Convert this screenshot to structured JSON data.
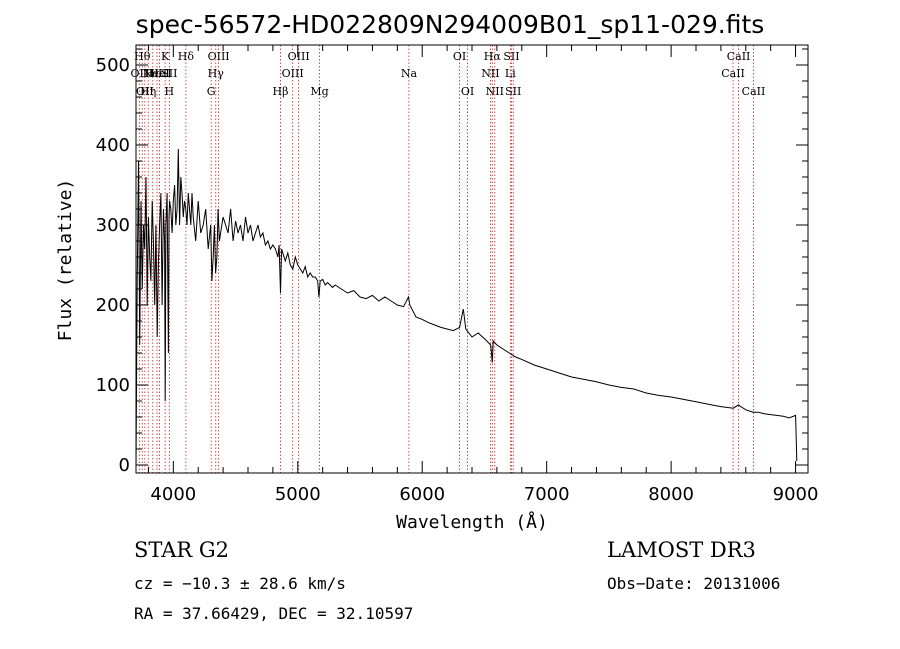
{
  "chart_data": {
    "type": "line",
    "title": "spec-56572-HD022809N294009B01_sp11-029.fits",
    "xlabel": "Wavelength (Å)",
    "ylabel": "Flux (relative)",
    "xlim": [
      3700,
      9100
    ],
    "ylim": [
      -10,
      525
    ],
    "x_ticks": [
      4000,
      5000,
      6000,
      7000,
      8000,
      9000
    ],
    "y_ticks": [
      0,
      100,
      200,
      300,
      400,
      500
    ],
    "series": [
      {
        "name": "spectrum",
        "x": [
          3700,
          3710,
          3720,
          3730,
          3740,
          3750,
          3760,
          3770,
          3780,
          3790,
          3800,
          3810,
          3820,
          3830,
          3840,
          3850,
          3860,
          3870,
          3880,
          3890,
          3900,
          3910,
          3920,
          3930,
          3935,
          3940,
          3950,
          3960,
          3965,
          3970,
          3980,
          3990,
          4000,
          4010,
          4020,
          4030,
          4040,
          4050,
          4060,
          4070,
          4080,
          4090,
          4100,
          4110,
          4120,
          4130,
          4140,
          4150,
          4160,
          4180,
          4200,
          4220,
          4240,
          4260,
          4280,
          4300,
          4310,
          4320,
          4330,
          4340,
          4350,
          4360,
          4370,
          4380,
          4400,
          4420,
          4440,
          4460,
          4480,
          4500,
          4520,
          4540,
          4560,
          4580,
          4600,
          4620,
          4640,
          4660,
          4680,
          4700,
          4720,
          4740,
          4760,
          4780,
          4800,
          4820,
          4840,
          4850,
          4861,
          4870,
          4880,
          4900,
          4920,
          4940,
          4960,
          4980,
          5000,
          5020,
          5040,
          5060,
          5080,
          5100,
          5120,
          5140,
          5160,
          5170,
          5180,
          5200,
          5220,
          5240,
          5260,
          5280,
          5300,
          5350,
          5400,
          5450,
          5500,
          5550,
          5600,
          5650,
          5700,
          5750,
          5800,
          5850,
          5890,
          5900,
          5950,
          6000,
          6050,
          6100,
          6150,
          6200,
          6250,
          6300,
          6330,
          6350,
          6400,
          6450,
          6500,
          6550,
          6563,
          6570,
          6600,
          6650,
          6700,
          6750,
          6800,
          6900,
          7000,
          7100,
          7200,
          7300,
          7400,
          7500,
          7600,
          7700,
          7800,
          7900,
          8000,
          8100,
          8200,
          8300,
          8400,
          8500,
          8540,
          8600,
          8660,
          8700,
          8750,
          8800,
          8850,
          8900,
          8950,
          9000,
          9010
        ],
        "y": [
          -5,
          230,
          380,
          150,
          330,
          220,
          300,
          270,
          360,
          200,
          310,
          260,
          230,
          330,
          280,
          200,
          300,
          160,
          250,
          300,
          340,
          200,
          320,
          280,
          80,
          300,
          340,
          140,
          310,
          330,
          320,
          290,
          330,
          350,
          300,
          320,
          395,
          300,
          360,
          340,
          310,
          330,
          320,
          300,
          340,
          320,
          300,
          340,
          310,
          280,
          330,
          290,
          300,
          320,
          270,
          300,
          230,
          260,
          300,
          240,
          260,
          320,
          280,
          290,
          310,
          300,
          290,
          320,
          280,
          305,
          290,
          300,
          280,
          310,
          290,
          300,
          280,
          290,
          300,
          285,
          290,
          275,
          280,
          270,
          275,
          270,
          260,
          275,
          215,
          270,
          265,
          255,
          265,
          250,
          245,
          260,
          250,
          245,
          240,
          248,
          235,
          240,
          235,
          235,
          230,
          210,
          230,
          232,
          225,
          228,
          225,
          222,
          225,
          220,
          215,
          218,
          210,
          208,
          212,
          205,
          210,
          205,
          200,
          198,
          210,
          200,
          185,
          182,
          178,
          175,
          172,
          170,
          168,
          172,
          195,
          170,
          160,
          165,
          158,
          150,
          128,
          155,
          150,
          145,
          140,
          135,
          132,
          125,
          120,
          115,
          110,
          107,
          104,
          100,
          97,
          95,
          90,
          87,
          85,
          82,
          79,
          76,
          73,
          71,
          75,
          69,
          66,
          66,
          64,
          63,
          62,
          61,
          59,
          62,
          5
        ]
      }
    ],
    "line_markers": [
      {
        "x": 3727,
        "labels": [
          "OII"
        ],
        "row": [
          2
        ]
      },
      {
        "x": 3750,
        "labels": [
          "Hθ"
        ],
        "row": [
          1
        ]
      },
      {
        "x": 3771,
        "labels": [
          "OII"
        ],
        "row": [
          3
        ]
      },
      {
        "x": 3798,
        "labels": [
          "Hη"
        ],
        "row": [
          3
        ]
      },
      {
        "x": 3835,
        "labels": [
          "Hε"
        ],
        "row": [
          2
        ]
      },
      {
        "x": 3869,
        "labels": [
          "NeIII"
        ],
        "row": [
          2
        ]
      },
      {
        "x": 3889,
        "labels": [
          "HeI"
        ],
        "row": [
          2
        ]
      },
      {
        "x": 3934,
        "labels": [
          "K"
        ],
        "row": [
          1
        ]
      },
      {
        "x": 3968,
        "labels": [
          "H",
          "SII"
        ],
        "row": [
          3,
          2
        ]
      },
      {
        "x": 4101,
        "labels": [
          "Hδ"
        ],
        "row": [
          1
        ]
      },
      {
        "x": 4304,
        "labels": [
          "G"
        ],
        "row": [
          3
        ]
      },
      {
        "x": 4341,
        "labels": [
          "Hγ"
        ],
        "row": [
          2
        ]
      },
      {
        "x": 4364,
        "labels": [
          "OIII"
        ],
        "row": [
          1
        ]
      },
      {
        "x": 4861,
        "labels": [
          "Hβ"
        ],
        "row": [
          3
        ]
      },
      {
        "x": 4959,
        "labels": [
          "OIII"
        ],
        "row": [
          2
        ]
      },
      {
        "x": 5007,
        "labels": [
          "OIII"
        ],
        "row": [
          1
        ]
      },
      {
        "x": 5175,
        "labels": [
          "Mg"
        ],
        "row": [
          3
        ]
      },
      {
        "x": 5893,
        "labels": [
          "Na"
        ],
        "row": [
          2
        ]
      },
      {
        "x": 6300,
        "labels": [
          "OI"
        ],
        "row": [
          1
        ]
      },
      {
        "x": 6364,
        "labels": [
          "OI"
        ],
        "row": [
          3
        ]
      },
      {
        "x": 6548,
        "labels": [
          "NII"
        ],
        "row": [
          2
        ]
      },
      {
        "x": 6563,
        "labels": [
          "Hα"
        ],
        "row": [
          1
        ]
      },
      {
        "x": 6583,
        "labels": [
          "NII"
        ],
        "row": [
          3
        ]
      },
      {
        "x": 6708,
        "labels": [
          "Li"
        ],
        "row": [
          2
        ]
      },
      {
        "x": 6717,
        "labels": [
          "SII"
        ],
        "row": [
          1
        ]
      },
      {
        "x": 6731,
        "labels": [
          "SII"
        ],
        "row": [
          3
        ]
      },
      {
        "x": 8498,
        "labels": [
          "CaII"
        ],
        "row": [
          2
        ]
      },
      {
        "x": 8542,
        "labels": [
          "CaII"
        ],
        "row": [
          1
        ]
      },
      {
        "x": 8662,
        "labels": [
          "CaII"
        ],
        "row": [
          3
        ]
      }
    ]
  },
  "info": {
    "class_label": "STAR    G2",
    "cz_text": "cz = −10.3 ± 28.6 km/s",
    "radec_text": "RA =  37.66429, DEC =  32.10597",
    "survey": "LAMOST DR3",
    "obs_date": "Obs−Date: 20131006"
  },
  "colors": {
    "marker_line": "#cc2222",
    "spectrum": "#000000"
  }
}
